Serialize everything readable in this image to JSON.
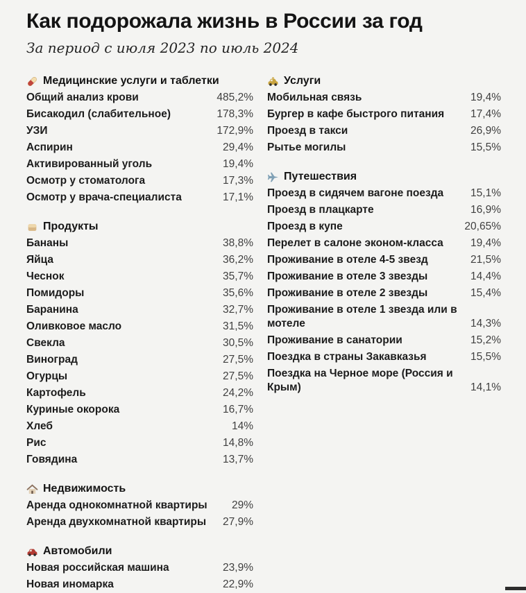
{
  "page": {
    "title": "Как подорожала жизнь в России за год",
    "subtitle": "За период с июля 2023 по июль 2024",
    "background_color": "#f4f4f2",
    "label_color": "#1c1c1c",
    "value_color": "#3f3f3f"
  },
  "chart_data": {
    "type": "table",
    "title": "Как подорожала жизнь в России за год",
    "subtitle": "За период с июля 2023 по июль 2024",
    "unit": "percent price increase, July 2023 — July 2024",
    "value_format": "comma-decimal-percent",
    "layout": {
      "columns_sections": [
        [
          0,
          1,
          2,
          3
        ],
        [
          4,
          5
        ]
      ]
    },
    "sections": [
      {
        "id": "medical",
        "icon": "pill-icon",
        "name": "Медицинские услуги и таблетки",
        "rows": [
          [
            "Общий анализ крови",
            485.2
          ],
          [
            "Бисакодил (слабительное)",
            178.3
          ],
          [
            "УЗИ",
            172.9
          ],
          [
            "Аспирин",
            29.4
          ],
          [
            "Активированный уголь",
            19.4
          ],
          [
            "Осмотр у стоматолога",
            17.3
          ],
          [
            "Осмотр у врача-специалиста",
            17.1
          ]
        ]
      },
      {
        "id": "products",
        "icon": "bread-icon",
        "name": "Продукты",
        "rows": [
          [
            "Бананы",
            38.8
          ],
          [
            "Яйца",
            36.2
          ],
          [
            "Чеснок",
            35.7
          ],
          [
            "Помидоры",
            35.6
          ],
          [
            "Баранина",
            32.7
          ],
          [
            "Оливковое масло",
            31.5
          ],
          [
            "Свекла",
            30.5
          ],
          [
            "Виноград",
            27.5
          ],
          [
            "Огурцы",
            27.5
          ],
          [
            "Картофель",
            24.2
          ],
          [
            "Куриные окорока",
            16.7
          ],
          [
            "Хлеб",
            14
          ],
          [
            "Рис",
            14.8
          ],
          [
            "Говядина",
            13.7
          ]
        ]
      },
      {
        "id": "real-estate",
        "icon": "house-icon",
        "name": "Недвижимость",
        "rows": [
          [
            "Аренда однокомнатной квартиры",
            29
          ],
          [
            "Аренда двухкомнатной квартиры",
            27.9
          ]
        ]
      },
      {
        "id": "cars",
        "icon": "car-icon",
        "name": "Автомобили",
        "rows": [
          [
            "Новая российская машина",
            23.9
          ],
          [
            "Новая иномарка",
            22.9
          ]
        ]
      },
      {
        "id": "services",
        "icon": "taxi-icon",
        "name": "Услуги",
        "rows": [
          [
            "Мобильная связь",
            19.4
          ],
          [
            "Бургер в кафе быстрого питания",
            17.4
          ],
          [
            "Проезд в такси",
            26.9
          ],
          [
            "Рытье могилы",
            15.5
          ]
        ]
      },
      {
        "id": "travel",
        "icon": "plane-icon",
        "name": "Путешествия",
        "rows": [
          [
            "Проезд в сидячем вагоне поезда",
            15.1
          ],
          [
            "Проезд в плацкарте",
            16.9
          ],
          [
            "Проезд в купе",
            20.65
          ],
          [
            "Перелет в салоне эконом-класса",
            19.4
          ],
          [
            "Проживание в отеле 4-5 звезд",
            21.5
          ],
          [
            "Проживание в отеле 3 звезды",
            14.4
          ],
          [
            "Проживание в отеле 2 звезды",
            15.4
          ],
          [
            "Проживание в отеле 1 звезда или в мотеле",
            14.3
          ],
          [
            "Проживание в санатории",
            15.2
          ],
          [
            "Поездка в страны Закавказья",
            15.5
          ],
          [
            "Поездка на Черное море (Россия и Крым)",
            14.1
          ]
        ]
      }
    ]
  }
}
